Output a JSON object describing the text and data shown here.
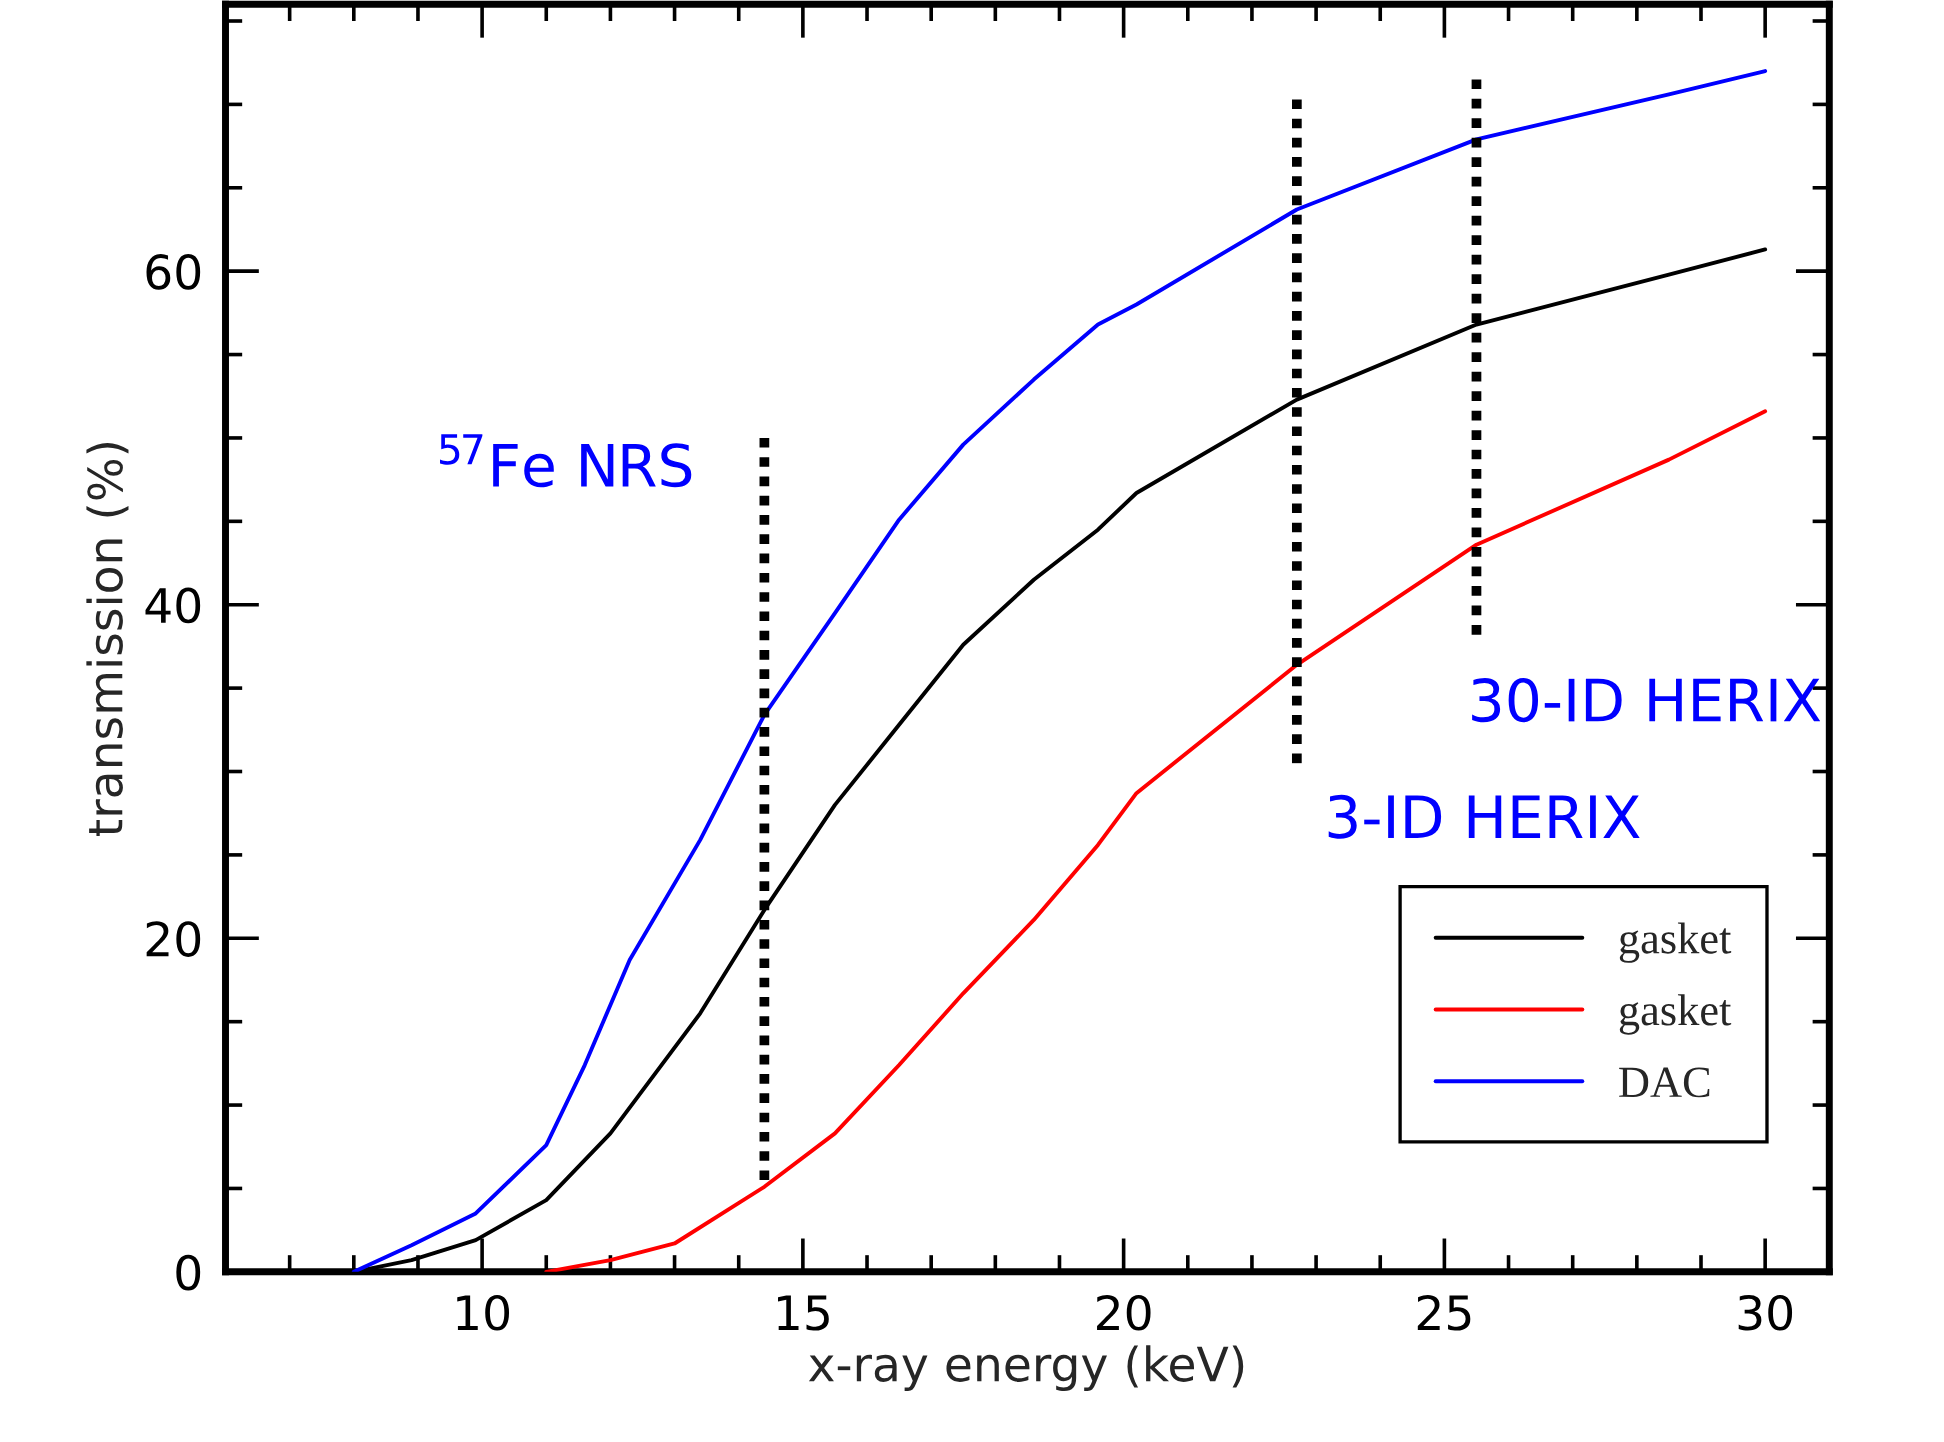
{
  "chart_data": {
    "type": "line",
    "xlabel": "x-ray energy (keV)",
    "ylabel": "transmission (%)",
    "xlim": [
      6,
      31
    ],
    "ylim": [
      0,
      76
    ],
    "xticks": [
      {
        "value": 7,
        "label": null
      },
      {
        "value": 8,
        "label": null
      },
      {
        "value": 9,
        "label": null
      },
      10,
      {
        "value": 11,
        "label": null
      },
      {
        "value": 12,
        "label": null
      },
      {
        "value": 13,
        "label": null
      },
      {
        "value": 14,
        "label": null
      },
      15,
      {
        "value": 16,
        "label": null
      },
      {
        "value": 17,
        "label": null
      },
      {
        "value": 18,
        "label": null
      },
      {
        "value": 19,
        "label": null
      },
      20,
      {
        "value": 21,
        "label": null
      },
      {
        "value": 22,
        "label": null
      },
      {
        "value": 23,
        "label": null
      },
      {
        "value": 24,
        "label": null
      },
      25,
      {
        "value": 26,
        "label": null
      },
      {
        "value": 27,
        "label": null
      },
      {
        "value": 28,
        "label": null
      },
      {
        "value": 29,
        "label": null
      },
      30
    ],
    "yticks": [
      0,
      {
        "value": 5,
        "label": null
      },
      {
        "value": 10,
        "label": null
      },
      {
        "value": 15,
        "label": null
      },
      20,
      {
        "value": 25,
        "label": null
      },
      {
        "value": 30,
        "label": null
      },
      {
        "value": 35,
        "label": null
      },
      40,
      {
        "value": 45,
        "label": null
      },
      {
        "value": 50,
        "label": null
      },
      {
        "value": 55,
        "label": null
      },
      60,
      {
        "value": 65,
        "label": null
      },
      {
        "value": 70,
        "label": null
      },
      {
        "value": 75,
        "label": null
      }
    ],
    "grid": false,
    "legend": "bottom right",
    "marker": "none",
    "series": [
      {
        "name": "gasket",
        "color": "#000000",
        "x": [
          8.0,
          8.9,
          9.9,
          11.0,
          12.0,
          13.4,
          14.4,
          15.5,
          16.5,
          17.5,
          18.6,
          19.6,
          20.2,
          22.7,
          25.5,
          28.5,
          30.0
        ],
        "values": [
          0,
          0.7,
          1.9,
          4.3,
          8.3,
          15.5,
          21.7,
          28,
          32.8,
          37.6,
          41.5,
          44.5,
          46.7,
          52.3,
          56.8,
          59.8,
          61.3
        ]
      },
      {
        "name": "gasket",
        "color": "#ff0000",
        "x": [
          11.0,
          12.0,
          13.0,
          14.4,
          15.5,
          16.5,
          17.5,
          18.6,
          19.6,
          20.2,
          22.7,
          25.5,
          28.5,
          30.0
        ],
        "values": [
          0,
          0.7,
          1.7,
          5.1,
          8.3,
          12.4,
          16.7,
          21.1,
          25.6,
          28.7,
          36.4,
          43.6,
          48.7,
          51.6
        ]
      },
      {
        "name": "DAC",
        "color": "#0000ff",
        "x": [
          8.0,
          8.9,
          9.9,
          11.0,
          11.6,
          12.3,
          13.4,
          14.4,
          15.5,
          16.5,
          17.5,
          18.6,
          19.6,
          20.2,
          22.7,
          25.5,
          28.5,
          30.0
        ],
        "values": [
          0,
          1.6,
          3.5,
          7.6,
          12.4,
          18.7,
          25.9,
          33.4,
          39.5,
          45.1,
          49.6,
          53.5,
          56.8,
          58.0,
          63.7,
          67.9,
          70.6,
          72.0
        ]
      },
      {
        "color": "#000000",
        "line_style": "dotted",
        "x": [
          14.4,
          14.4
        ],
        "values": [
          5.5,
          50
        ]
      },
      {
        "color": "#000000",
        "line_style": "dotted",
        "x": [
          22.7,
          22.7
        ],
        "values": [
          30.5,
          70.3
        ]
      },
      {
        "color": "#000000",
        "line_style": "dotted",
        "x": [
          25.5,
          25.5
        ],
        "values": [
          38.2,
          71.5
        ]
      }
    ],
    "annotations": [
      "$^{57}$Fe NRS",
      "3-ID HERIX",
      "30-ID HERIX"
    ]
  }
}
